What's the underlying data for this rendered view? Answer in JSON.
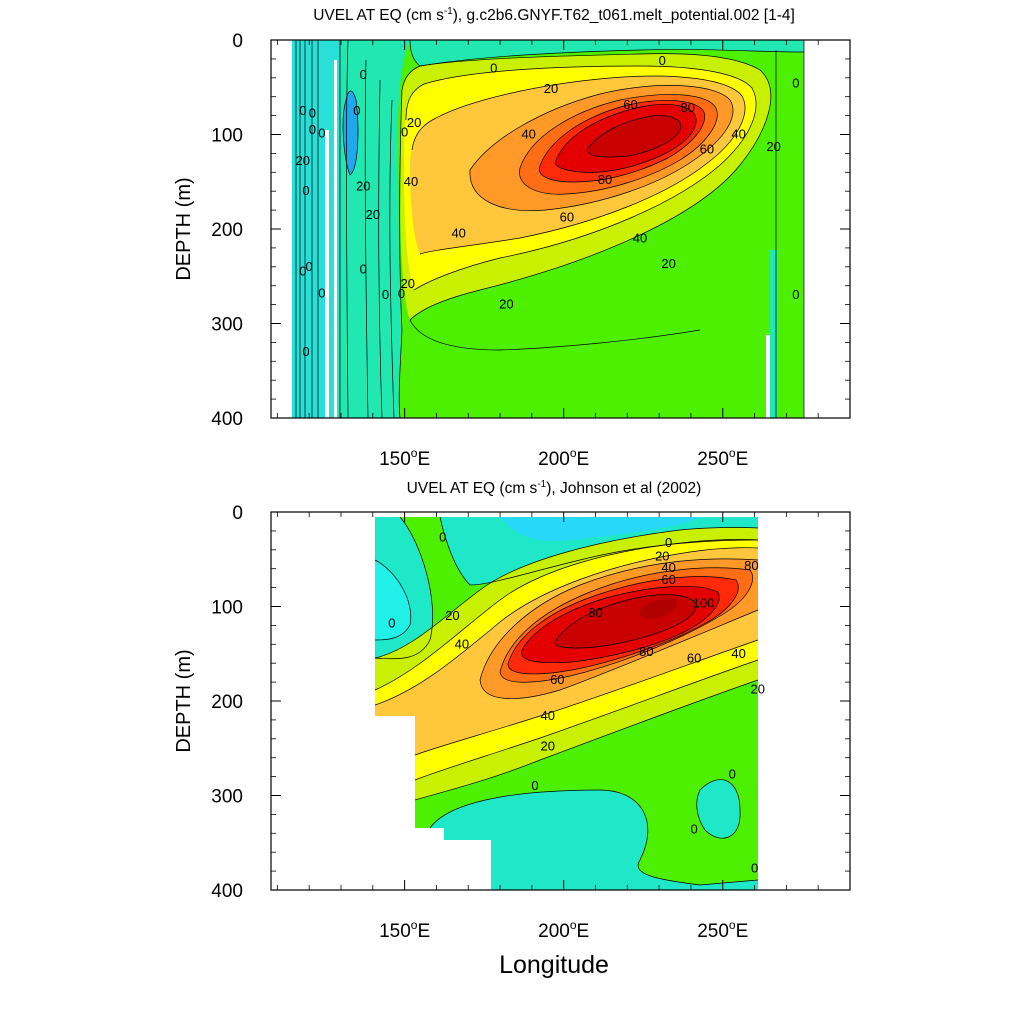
{
  "chart_data": [
    {
      "type": "contour",
      "title": "UVEL AT EQ (cm s",
      "title_sup": "-1",
      "title_rest": "), g.c2b6.GNYF.T62_t061.melt_potential.002 [1-4]",
      "ylabel": "DEPTH (m)",
      "xlabel": "",
      "xlim": [
        108,
        290
      ],
      "ylim": [
        400,
        0
      ],
      "y_ticks": [
        "0",
        "100",
        "200",
        "300",
        "400"
      ],
      "y_tick_values": [
        0,
        100,
        200,
        300,
        400
      ],
      "x_tick_values": [
        150,
        200,
        250
      ],
      "x_tick_labels": [
        "150",
        "200",
        "250"
      ],
      "x_tick_suffix": "E",
      "data_extent": {
        "lon": [
          117,
          279
        ],
        "depth": [
          5,
          400
        ]
      },
      "core": {
        "lon": 222,
        "depth": 115,
        "max_cm_s": 90
      },
      "contour_labels": [
        {
          "text": "0",
          "lon": 137,
          "depth": 37
        },
        {
          "text": "0",
          "lon": 135,
          "depth": 75
        },
        {
          "text": "0",
          "lon": 118,
          "depth": 75
        },
        {
          "text": "0",
          "lon": 121,
          "depth": 78
        },
        {
          "text": "0",
          "lon": 121,
          "depth": 95
        },
        {
          "text": "0",
          "lon": 124,
          "depth": 99
        },
        {
          "text": "0",
          "lon": 119,
          "depth": 160
        },
        {
          "text": "20",
          "lon": 118,
          "depth": 128
        },
        {
          "text": "20",
          "lon": 137,
          "depth": 155
        },
        {
          "text": "20",
          "lon": 140,
          "depth": 185
        },
        {
          "text": "0",
          "lon": 120,
          "depth": 240
        },
        {
          "text": "0",
          "lon": 118,
          "depth": 245
        },
        {
          "text": "0",
          "lon": 137,
          "depth": 243
        },
        {
          "text": "0",
          "lon": 124,
          "depth": 268
        },
        {
          "text": "0",
          "lon": 144,
          "depth": 270
        },
        {
          "text": "0",
          "lon": 149,
          "depth": 269
        },
        {
          "text": "0",
          "lon": 119,
          "depth": 330
        },
        {
          "text": "0",
          "lon": 150,
          "depth": 98
        },
        {
          "text": "20",
          "lon": 153,
          "depth": 88
        },
        {
          "text": "40",
          "lon": 152,
          "depth": 150
        },
        {
          "text": "20",
          "lon": 151,
          "depth": 258
        },
        {
          "text": "0",
          "lon": 178,
          "depth": 30
        },
        {
          "text": "0",
          "lon": 231,
          "depth": 22
        },
        {
          "text": "20",
          "lon": 196,
          "depth": 52
        },
        {
          "text": "60",
          "lon": 221,
          "depth": 69
        },
        {
          "text": "80",
          "lon": 239,
          "depth": 72
        },
        {
          "text": "40",
          "lon": 189,
          "depth": 100
        },
        {
          "text": "40",
          "lon": 255,
          "depth": 100
        },
        {
          "text": "20",
          "lon": 266,
          "depth": 113
        },
        {
          "text": "60",
          "lon": 245,
          "depth": 116
        },
        {
          "text": "80",
          "lon": 213,
          "depth": 148
        },
        {
          "text": "60",
          "lon": 201,
          "depth": 188
        },
        {
          "text": "40",
          "lon": 167,
          "depth": 205
        },
        {
          "text": "40",
          "lon": 224,
          "depth": 210
        },
        {
          "text": "20",
          "lon": 233,
          "depth": 237
        },
        {
          "text": "20",
          "lon": 182,
          "depth": 280
        },
        {
          "text": "0",
          "lon": 273,
          "depth": 46
        },
        {
          "text": "0",
          "lon": 273,
          "depth": 270
        }
      ]
    },
    {
      "type": "contour",
      "title": "UVEL AT EQ (cm s",
      "title_sup": "-1",
      "title_rest": "), Johnson et al (2002)",
      "ylabel": "DEPTH (m)",
      "xlabel": "Longitude",
      "xlim": [
        108,
        290
      ],
      "ylim": [
        400,
        0
      ],
      "y_ticks": [
        "0",
        "100",
        "200",
        "300",
        "400"
      ],
      "y_tick_values": [
        0,
        100,
        200,
        300,
        400
      ],
      "x_tick_values": [
        150,
        200,
        250
      ],
      "x_tick_labels": [
        "150",
        "200",
        "250"
      ],
      "x_tick_suffix": "E",
      "data_extent": {
        "lon": [
          143,
          265
        ],
        "depth": [
          5,
          400
        ]
      },
      "core": {
        "lon": 228,
        "depth": 105,
        "max_cm_s": 105
      },
      "contour_labels": [
        {
          "text": "0",
          "lon": 162,
          "depth": 27
        },
        {
          "text": "0",
          "lon": 146,
          "depth": 118
        },
        {
          "text": "20",
          "lon": 165,
          "depth": 110
        },
        {
          "text": "40",
          "lon": 168,
          "depth": 140
        },
        {
          "text": "0",
          "lon": 233,
          "depth": 33
        },
        {
          "text": "20",
          "lon": 231,
          "depth": 47
        },
        {
          "text": "40",
          "lon": 233,
          "depth": 59
        },
        {
          "text": "60",
          "lon": 233,
          "depth": 72
        },
        {
          "text": "80",
          "lon": 259,
          "depth": 57
        },
        {
          "text": "80",
          "lon": 210,
          "depth": 107
        },
        {
          "text": "100",
          "lon": 244,
          "depth": 97
        },
        {
          "text": "80",
          "lon": 226,
          "depth": 148
        },
        {
          "text": "60",
          "lon": 241,
          "depth": 155
        },
        {
          "text": "40",
          "lon": 255,
          "depth": 150
        },
        {
          "text": "60",
          "lon": 198,
          "depth": 178
        },
        {
          "text": "20",
          "lon": 261,
          "depth": 188
        },
        {
          "text": "40",
          "lon": 195,
          "depth": 216
        },
        {
          "text": "20",
          "lon": 195,
          "depth": 248
        },
        {
          "text": "0",
          "lon": 191,
          "depth": 290
        },
        {
          "text": "0",
          "lon": 253,
          "depth": 278
        },
        {
          "text": "0",
          "lon": 241,
          "depth": 336
        },
        {
          "text": "0",
          "lon": 260,
          "depth": 377
        }
      ]
    }
  ]
}
